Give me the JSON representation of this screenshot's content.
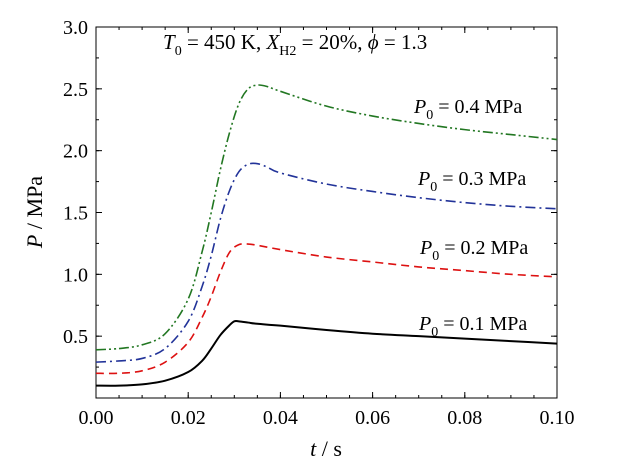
{
  "chart_data": {
    "type": "line",
    "title": "",
    "annotation": {
      "t0_sym": "T",
      "t0_sub": "0",
      "t0_val": " = 450 K, ",
      "x_sym": "X",
      "x_sub": "H2",
      "x_val": " = 20%, ",
      "phi_sym": "ϕ",
      "phi_val": " = 1.3"
    },
    "xlabel": {
      "sym": "t",
      "unit": " / s"
    },
    "ylabel": {
      "sym": "P",
      "unit": " / MPa"
    },
    "xlim": [
      0.0,
      0.1
    ],
    "ylim": [
      0.0,
      3.0
    ],
    "xticks": [
      "0.00",
      "0.02",
      "0.04",
      "0.06",
      "0.08",
      "0.10"
    ],
    "yticks": [
      "0.5",
      "1.0",
      "1.5",
      "2.0",
      "2.5",
      "3.0"
    ],
    "grid": false,
    "series": [
      {
        "name": "P0 = 0.1 MPa",
        "label": {
          "sym": "P",
          "sub": "0",
          "val": " = 0.1 MPa"
        },
        "color": "#000000",
        "dash": "solid",
        "x": [
          0.0,
          0.005,
          0.01,
          0.015,
          0.02,
          0.023,
          0.025,
          0.027,
          0.029,
          0.03,
          0.031,
          0.033,
          0.035,
          0.04,
          0.05,
          0.06,
          0.07,
          0.08,
          0.09,
          0.1
        ],
        "y": [
          0.1,
          0.1,
          0.11,
          0.14,
          0.21,
          0.3,
          0.4,
          0.51,
          0.59,
          0.62,
          0.62,
          0.61,
          0.6,
          0.585,
          0.55,
          0.52,
          0.5,
          0.48,
          0.46,
          0.44
        ]
      },
      {
        "name": "P0 = 0.2 MPa",
        "label": {
          "sym": "P",
          "sub": "0",
          "val": " = 0.2 MPa"
        },
        "color": "#dd1111",
        "dash": "dashed",
        "x": [
          0.0,
          0.005,
          0.01,
          0.015,
          0.02,
          0.023,
          0.025,
          0.027,
          0.029,
          0.031,
          0.033,
          0.035,
          0.04,
          0.05,
          0.06,
          0.07,
          0.08,
          0.09,
          0.1
        ],
        "y": [
          0.2,
          0.2,
          0.22,
          0.29,
          0.45,
          0.65,
          0.82,
          1.02,
          1.18,
          1.24,
          1.245,
          1.235,
          1.2,
          1.14,
          1.1,
          1.06,
          1.03,
          1.0,
          0.98
        ]
      },
      {
        "name": "P0 = 0.3 MPa",
        "label": {
          "sym": "P",
          "sub": "0",
          "val": " = 0.3 MPa"
        },
        "color": "#223399",
        "dash": "dashdot",
        "x": [
          0.0,
          0.005,
          0.01,
          0.015,
          0.02,
          0.023,
          0.025,
          0.027,
          0.029,
          0.031,
          0.033,
          0.035,
          0.037,
          0.04,
          0.05,
          0.06,
          0.07,
          0.08,
          0.09,
          0.1
        ],
        "y": [
          0.29,
          0.3,
          0.32,
          0.4,
          0.62,
          0.9,
          1.15,
          1.45,
          1.68,
          1.83,
          1.89,
          1.895,
          1.87,
          1.82,
          1.73,
          1.67,
          1.62,
          1.58,
          1.55,
          1.53
        ]
      },
      {
        "name": "P0 = 0.4 MPa",
        "label": {
          "sym": "P",
          "sub": "0",
          "val": " = 0.4 MPa"
        },
        "color": "#227722",
        "dash": "dashdotdot",
        "x": [
          0.0,
          0.005,
          0.01,
          0.015,
          0.02,
          0.023,
          0.025,
          0.027,
          0.029,
          0.031,
          0.033,
          0.035,
          0.037,
          0.04,
          0.05,
          0.06,
          0.07,
          0.08,
          0.09,
          0.1
        ],
        "y": [
          0.39,
          0.4,
          0.43,
          0.52,
          0.8,
          1.18,
          1.5,
          1.85,
          2.15,
          2.38,
          2.5,
          2.53,
          2.52,
          2.48,
          2.36,
          2.28,
          2.22,
          2.17,
          2.13,
          2.09
        ]
      }
    ]
  }
}
